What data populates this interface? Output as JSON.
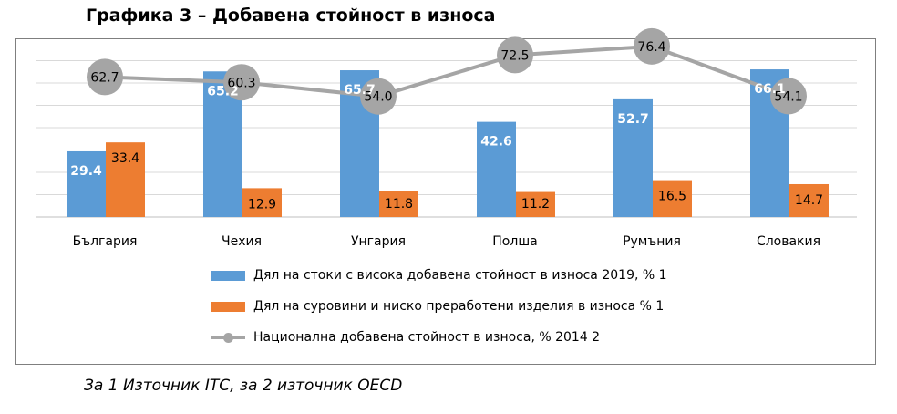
{
  "title": "Графика 3 – Добавена стойност в износа",
  "source_note": "За 1 Източник ITC, за 2 източник OECD",
  "colors": {
    "series1": "#5b9bd5",
    "series2": "#ed7d31",
    "series3": "#a5a5a5",
    "grid": "#d9d9d9"
  },
  "chart_data": {
    "type": "bar",
    "categories": [
      "България",
      "Чехия",
      "Унгария",
      "Полша",
      "Румъния",
      "Словакия"
    ],
    "series": [
      {
        "name": "Дял на стоки с висока добавена стойност в износа 2019, % 1",
        "type": "bar",
        "values": [
          29.4,
          65.2,
          65.7,
          42.6,
          52.7,
          66.1
        ]
      },
      {
        "name": "Дял на суровини и ниско преработени изделия в износа % 1",
        "type": "bar",
        "values": [
          33.4,
          12.9,
          11.8,
          11.2,
          16.5,
          14.7
        ]
      },
      {
        "name": "Национална добавена стойност в износа, % 2014 2",
        "type": "line",
        "values": [
          62.7,
          60.3,
          54.0,
          72.5,
          76.4,
          54.1
        ]
      }
    ],
    "ylim": [
      0,
      70
    ],
    "grid": true,
    "legend": "bottom"
  }
}
